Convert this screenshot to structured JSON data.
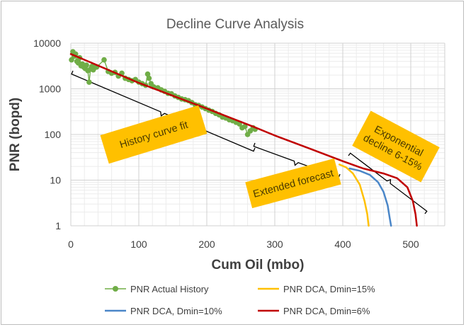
{
  "chart_data": {
    "type": "line",
    "title": "Decline Curve Analysis",
    "xlabel": "Cum Oil (mbo)",
    "ylabel": "PNR (bopd)",
    "x_ticks": [
      "0",
      "100",
      "200",
      "300",
      "400",
      "500"
    ],
    "y_ticks": [
      "1",
      "10",
      "100",
      "1000",
      "10000"
    ],
    "xlim": [
      0,
      550
    ],
    "ylim": [
      1,
      10000
    ],
    "y_scale": "log",
    "grid": true,
    "legend_position": "bottom",
    "series": [
      {
        "name": "PNR Actual History",
        "kind": "scatter-line",
        "color": "#70ad47",
        "points": [
          [
            1,
            4300
          ],
          [
            3,
            6500
          ],
          [
            5,
            5200
          ],
          [
            7,
            5800
          ],
          [
            9,
            4000
          ],
          [
            11,
            3700
          ],
          [
            13,
            4800
          ],
          [
            15,
            3200
          ],
          [
            17,
            3500
          ],
          [
            19,
            3000
          ],
          [
            21,
            2800
          ],
          [
            23,
            3300
          ],
          [
            25,
            2500
          ],
          [
            27,
            1400
          ],
          [
            29,
            2700
          ],
          [
            31,
            3100
          ],
          [
            33,
            2600
          ],
          [
            35,
            2900
          ],
          [
            38,
            3000
          ],
          [
            49,
            4300
          ],
          [
            55,
            2400
          ],
          [
            60,
            2200
          ],
          [
            65,
            2300
          ],
          [
            70,
            1900
          ],
          [
            75,
            2200
          ],
          [
            80,
            1700
          ],
          [
            85,
            1600
          ],
          [
            90,
            1500
          ],
          [
            95,
            1600
          ],
          [
            100,
            1400
          ],
          [
            105,
            1300
          ],
          [
            110,
            1200
          ],
          [
            113,
            2100
          ],
          [
            115,
            1700
          ],
          [
            118,
            1300
          ],
          [
            122,
            1100
          ],
          [
            128,
            1050
          ],
          [
            133,
            950
          ],
          [
            138,
            880
          ],
          [
            143,
            800
          ],
          [
            148,
            780
          ],
          [
            153,
            700
          ],
          [
            158,
            650
          ],
          [
            163,
            600
          ],
          [
            168,
            580
          ],
          [
            173,
            550
          ],
          [
            178,
            500
          ],
          [
            183,
            450
          ],
          [
            188,
            430
          ],
          [
            193,
            400
          ],
          [
            198,
            370
          ],
          [
            203,
            340
          ],
          [
            208,
            320
          ],
          [
            213,
            290
          ],
          [
            218,
            270
          ],
          [
            223,
            240
          ],
          [
            228,
            230
          ],
          [
            233,
            210
          ],
          [
            238,
            200
          ],
          [
            243,
            185
          ],
          [
            248,
            170
          ],
          [
            252,
            140
          ],
          [
            256,
            150
          ],
          [
            260,
            100
          ],
          [
            264,
            120
          ],
          [
            268,
            140
          ],
          [
            271,
            130
          ]
        ]
      },
      {
        "name": "PNR DCA, Dmin=15%",
        "kind": "line",
        "color": "#ffc000",
        "points": [
          [
            395,
            22
          ],
          [
            405,
            19
          ],
          [
            415,
            14
          ],
          [
            425,
            8
          ],
          [
            432,
            3.5
          ],
          [
            436,
            1.8
          ],
          [
            438,
            1
          ]
        ]
      },
      {
        "name": "PNR DCA, Dmin=10%",
        "kind": "line",
        "color": "#4a86c8",
        "points": [
          [
            410,
            18
          ],
          [
            425,
            16
          ],
          [
            440,
            13
          ],
          [
            452,
            9
          ],
          [
            460,
            5.5
          ],
          [
            466,
            2.8
          ],
          [
            469,
            1.5
          ],
          [
            471,
            1
          ]
        ]
      },
      {
        "name": "PNR DCA, Dmin=6%",
        "kind": "line",
        "color": "#c00000",
        "points": [
          [
            0,
            5800
          ],
          [
            100,
            1350
          ],
          [
            200,
            370
          ],
          [
            270,
            145
          ],
          [
            300,
            95
          ],
          [
            350,
            50
          ],
          [
            400,
            26
          ],
          [
            430,
            18
          ],
          [
            460,
            14
          ],
          [
            480,
            11
          ],
          [
            495,
            7
          ],
          [
            503,
            3.5
          ],
          [
            507,
            1.8
          ],
          [
            509,
            1
          ]
        ]
      }
    ],
    "annotations": [
      {
        "text": [
          "History curve fit"
        ],
        "angle": -17
      },
      {
        "text": [
          "Extended forecast"
        ],
        "angle": -15
      },
      {
        "text": [
          "Exponential",
          "decline 6-15%"
        ],
        "angle": 28
      }
    ]
  }
}
